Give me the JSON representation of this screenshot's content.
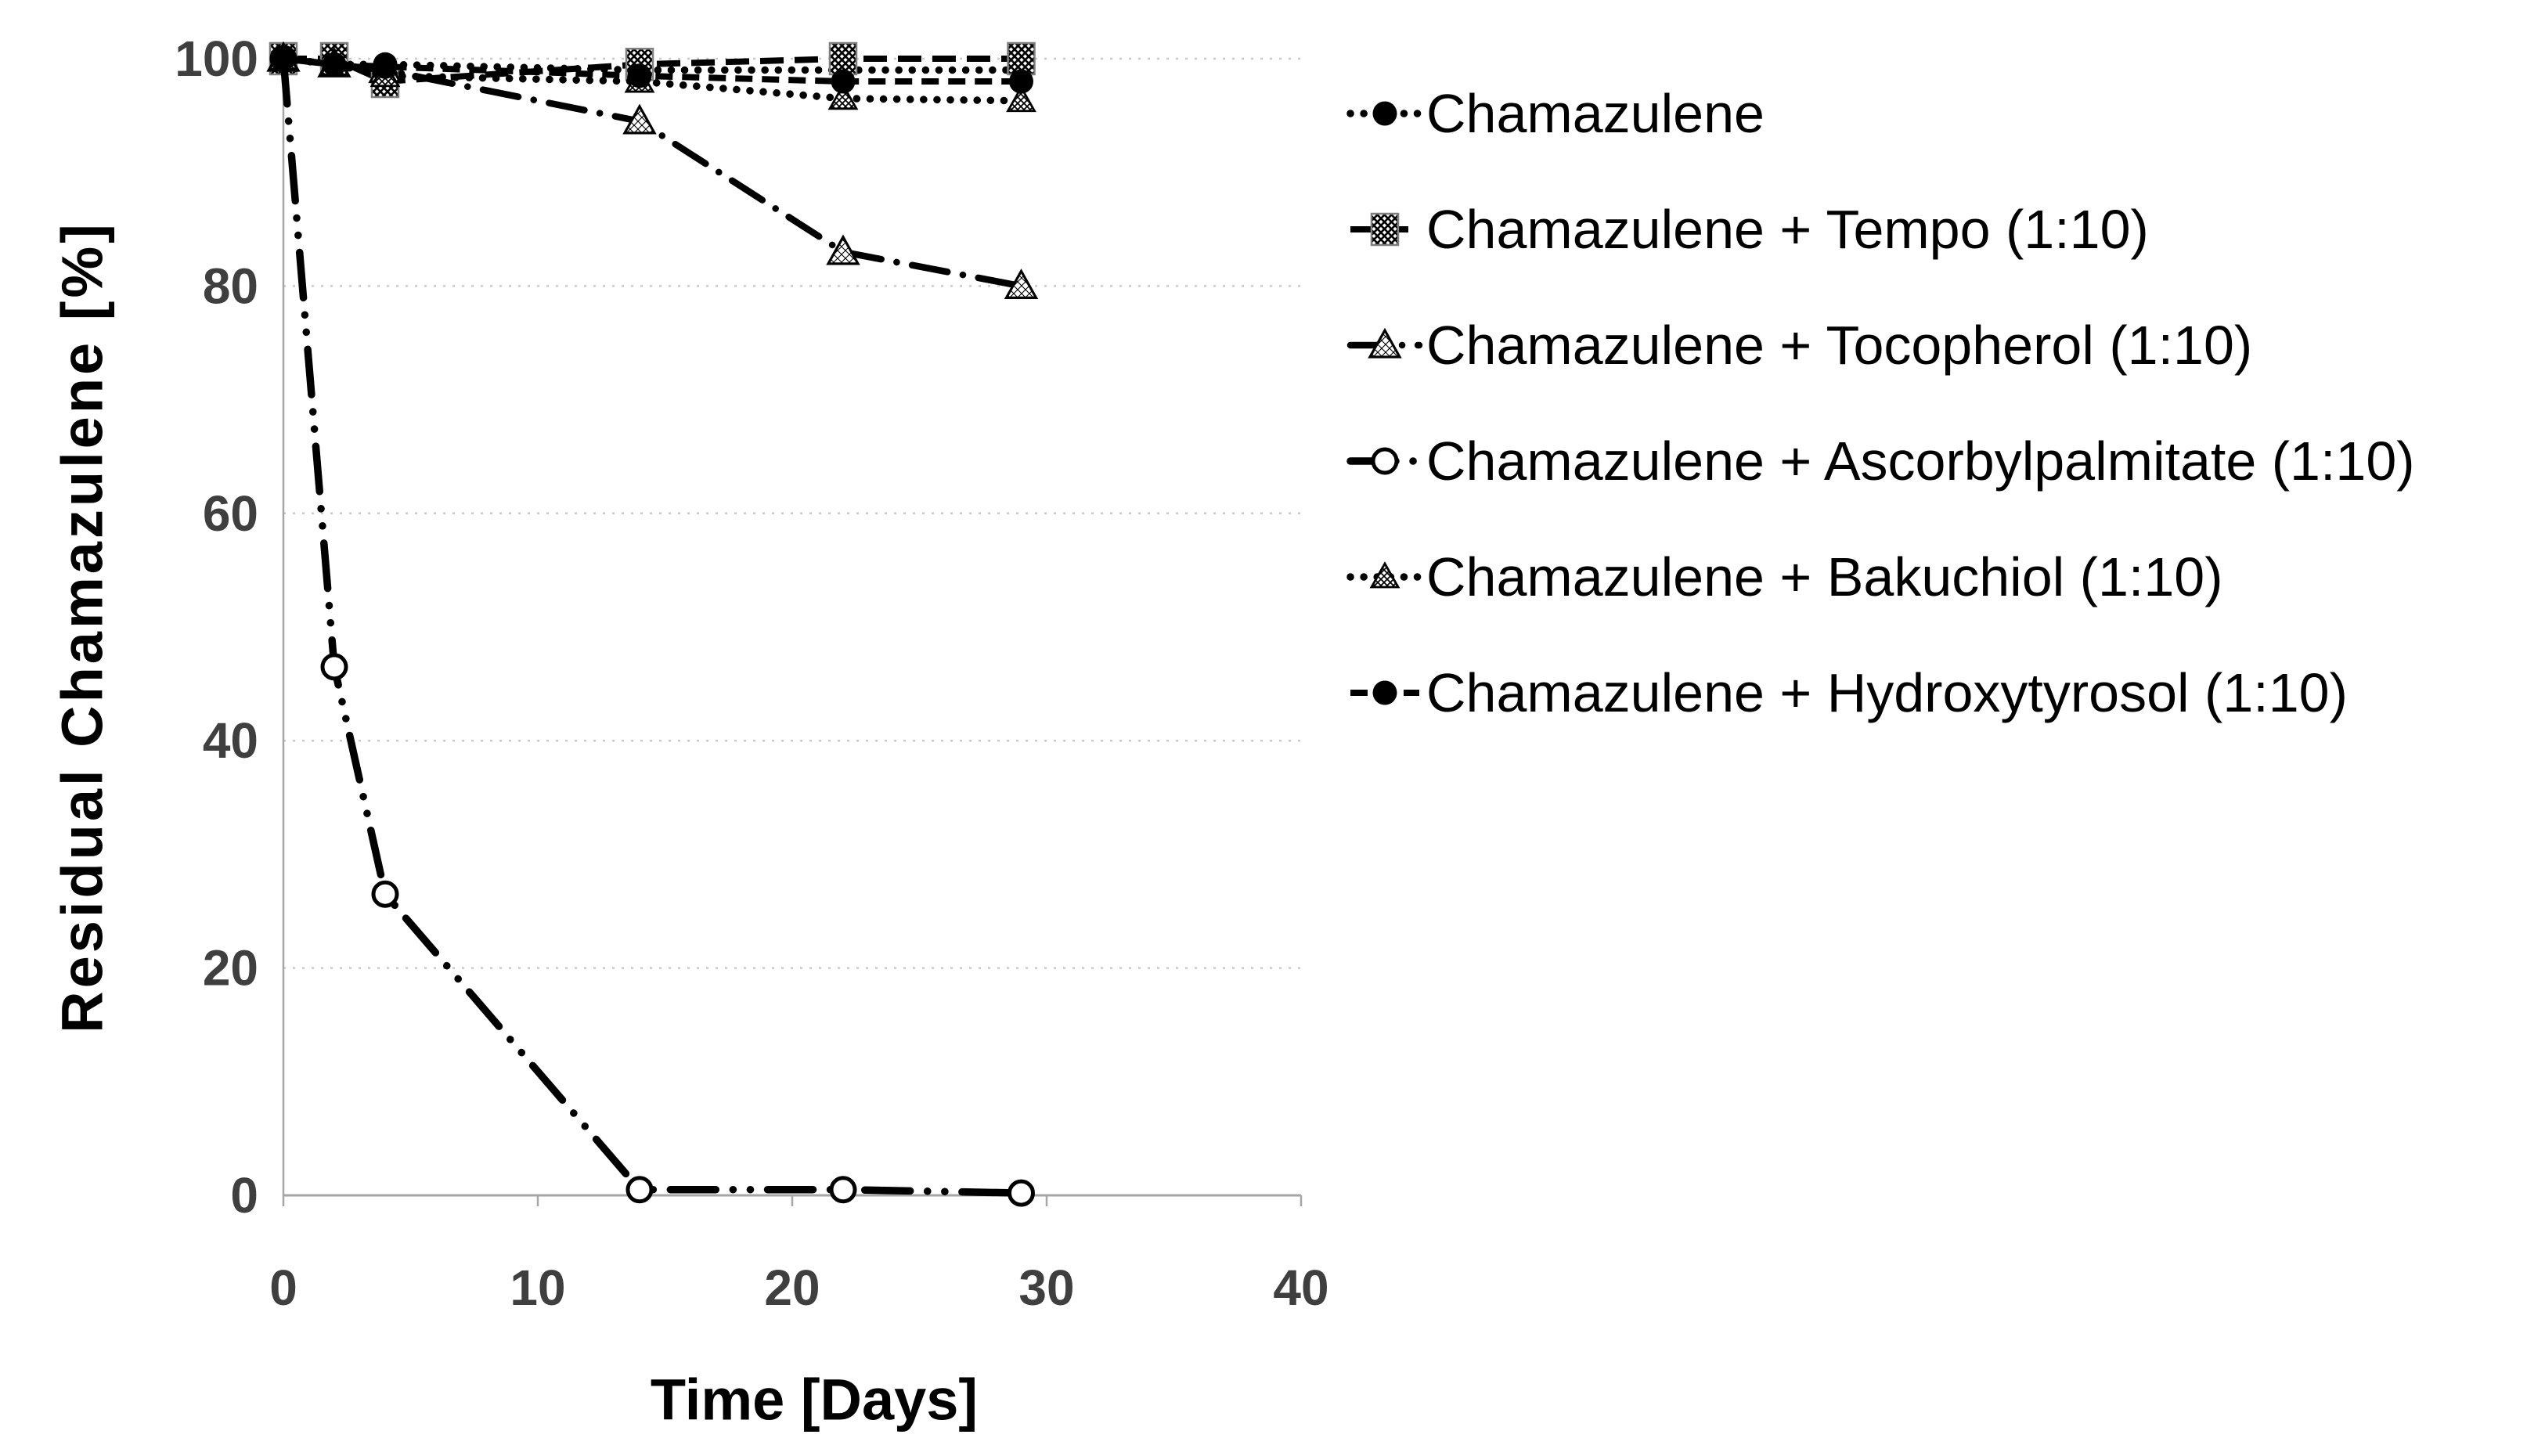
{
  "chart_data": {
    "type": "line",
    "title": "",
    "xlabel": "Time [Days]",
    "ylabel": "Residual Chamazulene [%]",
    "x": [
      0,
      2,
      4,
      14,
      22,
      29
    ],
    "xlim": [
      0,
      40
    ],
    "ylim": [
      0,
      100
    ],
    "x_ticks": [
      0,
      10,
      20,
      30,
      40
    ],
    "y_ticks": [
      0,
      20,
      40,
      60,
      80,
      100
    ],
    "grid": "horizontal-dotted",
    "legend_position": "right",
    "series": [
      {
        "name": "Chamazulene",
        "marker": "filled-circle",
        "line": "dot",
        "values": [
          100,
          99.5,
          99.5,
          99,
          99,
          99
        ]
      },
      {
        "name": "Chamazulene + Tempo (1:10)",
        "marker": "hatched-square",
        "line": "dash",
        "values": [
          100,
          100,
          98,
          99.5,
          100,
          100
        ]
      },
      {
        "name": "Chamazulene + Tocopherol (1:10)",
        "marker": "open-triangle",
        "line": "dash-dot",
        "values": [
          100,
          99.5,
          99,
          94.5,
          83,
          80
        ]
      },
      {
        "name": "Chamazulene + Ascorbylpalmitate (1:10)",
        "marker": "open-circle",
        "line": "dash-dot-dot",
        "values": [
          100,
          46.5,
          26.5,
          0.5,
          0.5,
          0.2
        ]
      },
      {
        "name": "Chamazulene + Bakuchiol (1:10)",
        "marker": "hatched-triangle",
        "line": "dot",
        "values": [
          100,
          99.5,
          98.5,
          98,
          96.5,
          96.3
        ]
      },
      {
        "name": "Chamazulene + Hydroxytyrosol (1:10)",
        "marker": "filled-circle",
        "line": "short-dash",
        "values": [
          100,
          99.5,
          99.3,
          98.5,
          98,
          98
        ]
      }
    ],
    "colors": {
      "series": "#000000",
      "tick_labels": "#3f3f3f",
      "axis_line": "#a6a6a6",
      "gridline": "#c9c9c9",
      "square_border": "#7f7f7f",
      "background": "#ffffff"
    }
  }
}
